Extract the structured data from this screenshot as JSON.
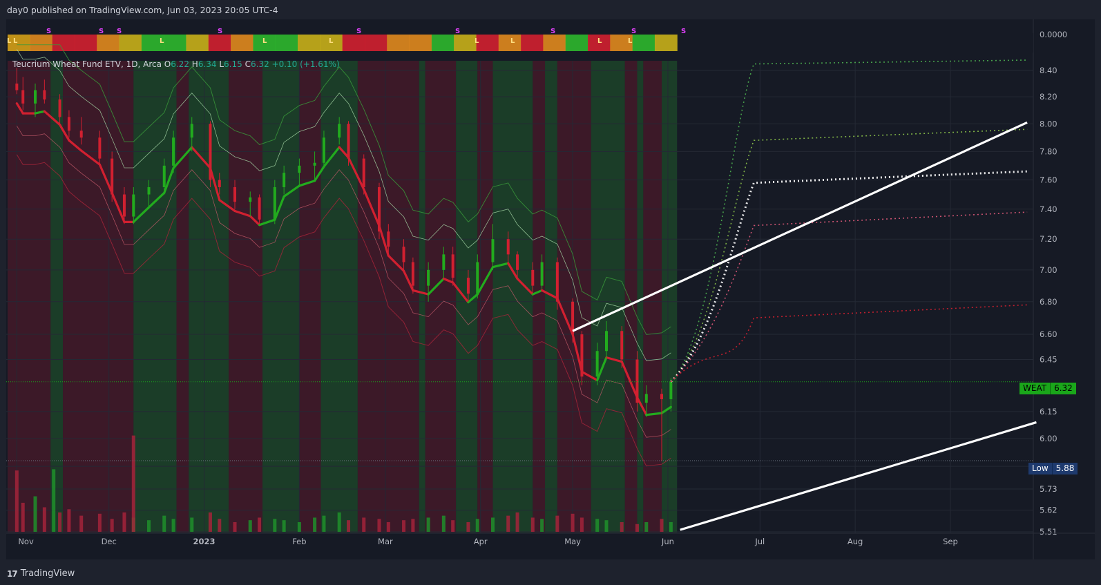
{
  "header": {
    "publisher_text": "day0 published on TradingView.com, Jun 03, 2023 20:05 UTC-4"
  },
  "footer": {
    "brand": "TradingView",
    "brand_mark": "17"
  },
  "legend": {
    "symbol": "Teucrium Wheat Fund ETV, 1D, Arca",
    "open_label": "O",
    "open": "6.22",
    "high_label": "H",
    "high": "6.34",
    "low_label": "L",
    "low": "6.15",
    "close_label": "C",
    "close": "6.32",
    "change": "+0.10 (+1.61%)"
  },
  "price_tags": {
    "weat_label": "WEAT",
    "weat_value": "6.32",
    "low_label": "Low",
    "low_value": "5.88"
  },
  "colors": {
    "up": "#22ab1e",
    "down": "#d12030",
    "bg_up": "#1d4a2a",
    "bg_down": "#4a1a2a",
    "white_line": "#ffffff",
    "weat_tag": "#1aa61a",
    "low_tag": "#1e3a6e"
  },
  "chart_data": {
    "type": "candlestick",
    "symbol": "WEAT",
    "timeframe": "1D",
    "y_scale": "log",
    "y_ticks": [
      "8.40",
      "8.20",
      "8.00",
      "7.80",
      "7.60",
      "7.40",
      "7.20",
      "7.00",
      "6.80",
      "6.60",
      "6.45",
      "6.15",
      "6.00",
      "5.85",
      "5.73",
      "5.62",
      "5.51"
    ],
    "oscillator_tick": "0.0000",
    "x_ticks": [
      "Nov",
      "Dec",
      "2023",
      "Feb",
      "Mar",
      "Apr",
      "May",
      "Jun",
      "Jul",
      "Aug",
      "Sep"
    ],
    "last_close": 6.32,
    "low_marker": 5.88,
    "signal_labels": [
      "L",
      "S",
      "S",
      "S",
      "L",
      "S",
      "L",
      "L",
      "S",
      "S",
      "L",
      "L",
      "S",
      "L",
      "L",
      "S",
      "S",
      "L"
    ],
    "candles": [
      {
        "d": "2022-11-01",
        "o": 8.3,
        "h": 8.42,
        "l": 8.22,
        "c": 8.25
      },
      {
        "d": "2022-11-03",
        "o": 8.25,
        "h": 8.35,
        "l": 8.1,
        "c": 8.15
      },
      {
        "d": "2022-11-07",
        "o": 8.15,
        "h": 8.3,
        "l": 8.05,
        "c": 8.25
      },
      {
        "d": "2022-11-10",
        "o": 8.25,
        "h": 8.33,
        "l": 8.15,
        "c": 8.18
      },
      {
        "d": "2022-11-15",
        "o": 8.18,
        "h": 8.22,
        "l": 8.0,
        "c": 8.05
      },
      {
        "d": "2022-11-18",
        "o": 8.05,
        "h": 8.1,
        "l": 7.9,
        "c": 7.95
      },
      {
        "d": "2022-11-22",
        "o": 7.95,
        "h": 8.05,
        "l": 7.85,
        "c": 7.9
      },
      {
        "d": "2022-11-28",
        "o": 7.9,
        "h": 7.95,
        "l": 7.7,
        "c": 7.75
      },
      {
        "d": "2022-12-02",
        "o": 7.75,
        "h": 7.8,
        "l": 7.45,
        "c": 7.5
      },
      {
        "d": "2022-12-06",
        "o": 7.5,
        "h": 7.55,
        "l": 7.3,
        "c": 7.35
      },
      {
        "d": "2022-12-09",
        "o": 7.35,
        "h": 7.55,
        "l": 7.3,
        "c": 7.5
      },
      {
        "d": "2022-12-14",
        "o": 7.5,
        "h": 7.6,
        "l": 7.4,
        "c": 7.55
      },
      {
        "d": "2022-12-19",
        "o": 7.55,
        "h": 7.75,
        "l": 7.5,
        "c": 7.7
      },
      {
        "d": "2022-12-22",
        "o": 7.7,
        "h": 7.95,
        "l": 7.65,
        "c": 7.9
      },
      {
        "d": "2022-12-28",
        "o": 7.9,
        "h": 8.05,
        "l": 7.8,
        "c": 8.0
      },
      {
        "d": "2023-01-03",
        "o": 8.0,
        "h": 8.02,
        "l": 7.55,
        "c": 7.6
      },
      {
        "d": "2023-01-06",
        "o": 7.6,
        "h": 7.65,
        "l": 7.5,
        "c": 7.55
      },
      {
        "d": "2023-01-11",
        "o": 7.55,
        "h": 7.6,
        "l": 7.4,
        "c": 7.45
      },
      {
        "d": "2023-01-16",
        "o": 7.45,
        "h": 7.52,
        "l": 7.35,
        "c": 7.48
      },
      {
        "d": "2023-01-19",
        "o": 7.48,
        "h": 7.5,
        "l": 7.3,
        "c": 7.33
      },
      {
        "d": "2023-01-24",
        "o": 7.33,
        "h": 7.6,
        "l": 7.3,
        "c": 7.55
      },
      {
        "d": "2023-01-27",
        "o": 7.55,
        "h": 7.7,
        "l": 7.5,
        "c": 7.65
      },
      {
        "d": "2023-02-01",
        "o": 7.65,
        "h": 7.75,
        "l": 7.55,
        "c": 7.7
      },
      {
        "d": "2023-02-06",
        "o": 7.7,
        "h": 7.8,
        "l": 7.6,
        "c": 7.72
      },
      {
        "d": "2023-02-09",
        "o": 7.72,
        "h": 7.95,
        "l": 7.68,
        "c": 7.9
      },
      {
        "d": "2023-02-14",
        "o": 7.9,
        "h": 8.05,
        "l": 7.85,
        "c": 8.0
      },
      {
        "d": "2023-02-17",
        "o": 8.0,
        "h": 8.02,
        "l": 7.7,
        "c": 7.75
      },
      {
        "d": "2023-02-22",
        "o": 7.75,
        "h": 7.78,
        "l": 7.5,
        "c": 7.55
      },
      {
        "d": "2023-02-27",
        "o": 7.55,
        "h": 7.58,
        "l": 7.2,
        "c": 7.25
      },
      {
        "d": "2023-03-02",
        "o": 7.25,
        "h": 7.3,
        "l": 7.1,
        "c": 7.15
      },
      {
        "d": "2023-03-07",
        "o": 7.15,
        "h": 7.2,
        "l": 7.0,
        "c": 7.05
      },
      {
        "d": "2023-03-10",
        "o": 7.05,
        "h": 7.08,
        "l": 6.85,
        "c": 6.9
      },
      {
        "d": "2023-03-15",
        "o": 6.9,
        "h": 7.05,
        "l": 6.8,
        "c": 7.0
      },
      {
        "d": "2023-03-20",
        "o": 7.0,
        "h": 7.15,
        "l": 6.95,
        "c": 7.1
      },
      {
        "d": "2023-03-23",
        "o": 7.1,
        "h": 7.15,
        "l": 6.9,
        "c": 6.95
      },
      {
        "d": "2023-03-28",
        "o": 6.95,
        "h": 7.0,
        "l": 6.8,
        "c": 6.85
      },
      {
        "d": "2023-03-31",
        "o": 6.85,
        "h": 7.1,
        "l": 6.82,
        "c": 7.05
      },
      {
        "d": "2023-04-05",
        "o": 7.05,
        "h": 7.3,
        "l": 7.0,
        "c": 7.2
      },
      {
        "d": "2023-04-10",
        "o": 7.2,
        "h": 7.25,
        "l": 7.05,
        "c": 7.1
      },
      {
        "d": "2023-04-13",
        "o": 7.1,
        "h": 7.12,
        "l": 6.95,
        "c": 7.0
      },
      {
        "d": "2023-04-18",
        "o": 7.0,
        "h": 7.05,
        "l": 6.85,
        "c": 6.9
      },
      {
        "d": "2023-04-21",
        "o": 6.9,
        "h": 7.1,
        "l": 6.88,
        "c": 7.05
      },
      {
        "d": "2023-04-26",
        "o": 7.05,
        "h": 7.08,
        "l": 6.75,
        "c": 6.8
      },
      {
        "d": "2023-05-01",
        "o": 6.8,
        "h": 6.82,
        "l": 6.55,
        "c": 6.6
      },
      {
        "d": "2023-05-04",
        "o": 6.6,
        "h": 6.62,
        "l": 6.3,
        "c": 6.35
      },
      {
        "d": "2023-05-09",
        "o": 6.35,
        "h": 6.55,
        "l": 6.3,
        "c": 6.5
      },
      {
        "d": "2023-05-12",
        "o": 6.5,
        "h": 6.68,
        "l": 6.45,
        "c": 6.62
      },
      {
        "d": "2023-05-17",
        "o": 6.62,
        "h": 6.65,
        "l": 6.4,
        "c": 6.45
      },
      {
        "d": "2023-05-22",
        "o": 6.45,
        "h": 6.5,
        "l": 6.15,
        "c": 6.2
      },
      {
        "d": "2023-05-25",
        "o": 6.2,
        "h": 6.3,
        "l": 6.12,
        "c": 6.25
      },
      {
        "d": "2023-05-30",
        "o": 6.25,
        "h": 6.28,
        "l": 5.88,
        "c": 6.22
      },
      {
        "d": "2023-06-02",
        "o": 6.22,
        "h": 6.34,
        "l": 6.15,
        "c": 6.32
      }
    ],
    "volume_relative": [
      0.95,
      0.45,
      0.55,
      0.38,
      0.3,
      0.35,
      0.25,
      0.28,
      0.2,
      0.3,
      0.22,
      0.18,
      0.25,
      0.2,
      0.22,
      0.3,
      0.2,
      0.15,
      0.18,
      0.22,
      0.2,
      0.18,
      0.15,
      0.22,
      0.25,
      0.3,
      0.18,
      0.22,
      0.2,
      0.15,
      0.18,
      0.2,
      0.22,
      0.25,
      0.18,
      0.15,
      0.2,
      0.22,
      0.25,
      0.3,
      0.22,
      0.2,
      0.25,
      0.28,
      0.22,
      0.2,
      0.18,
      0.15,
      0.12,
      0.15,
      0.2,
      0.15
    ],
    "volume_spikes": [
      {
        "d": "2022-12-09",
        "v": 1.0
      },
      {
        "d": "2022-11-13",
        "v": 0.65
      }
    ]
  }
}
